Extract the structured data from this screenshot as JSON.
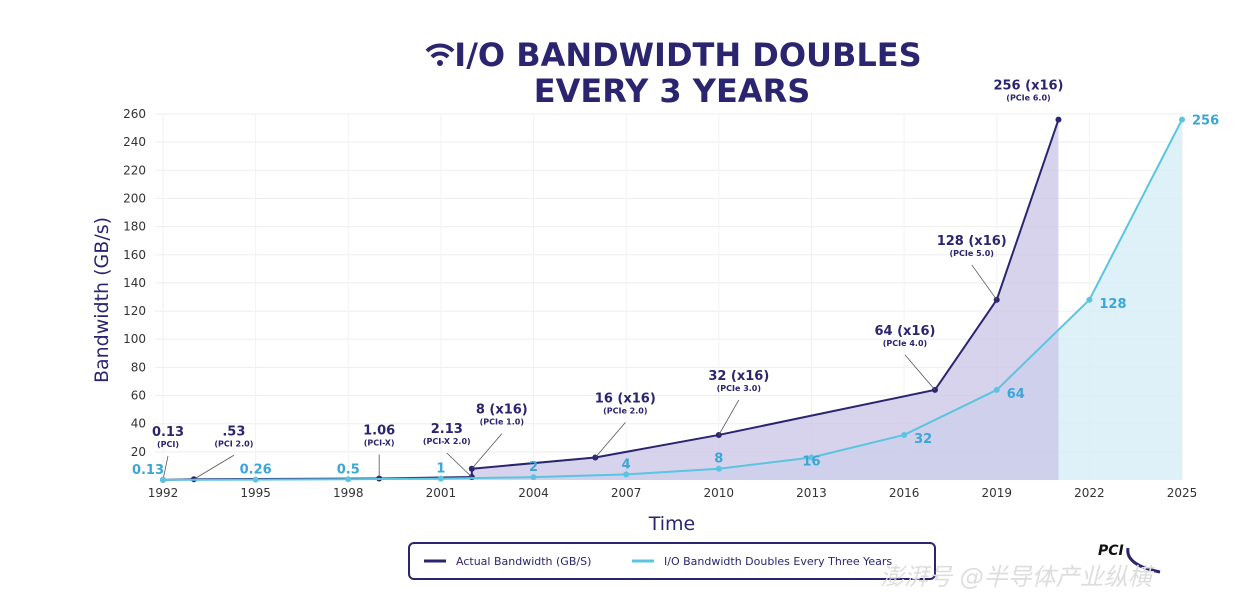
{
  "chart_data": {
    "type": "area",
    "title": [
      "I/O BANDWIDTH DOUBLES",
      "EVERY 3 YEARS"
    ],
    "title_icon": "wifi-icon",
    "xlabel": "Time",
    "ylabel": "Bandwidth (GB/s)",
    "xlim": [
      1992,
      2025
    ],
    "ylim": [
      0,
      260
    ],
    "xticks": [
      1992,
      1995,
      1998,
      2001,
      2004,
      2007,
      2010,
      2013,
      2016,
      2019,
      2022,
      2025
    ],
    "yticks": [
      20,
      40,
      60,
      80,
      100,
      120,
      140,
      160,
      180,
      200,
      220,
      240,
      260
    ],
    "grid": true,
    "legend_position": "bottom",
    "series": [
      {
        "name": "Actual Bandwidth (GB/S)",
        "color": "#2b2570",
        "fill": "#c9c4e6",
        "points": [
          {
            "x": 1992,
            "y": 0.13,
            "label": "0.13",
            "sub": "(PCI)"
          },
          {
            "x": 1993,
            "y": 0.53,
            "label": ".53",
            "sub": "(PCI 2.0)"
          },
          {
            "x": 1999,
            "y": 1.06,
            "label": "1.06",
            "sub": "(PCI-X)"
          },
          {
            "x": 2002,
            "y": 2.13,
            "label": "2.13",
            "sub": "(PCI-X 2.0)"
          },
          {
            "x": 2002,
            "y": 8,
            "label": "8 (x16)",
            "sub": "(PCIe 1.0)"
          },
          {
            "x": 2006,
            "y": 16,
            "label": "16 (x16)",
            "sub": "(PCIe 2.0)"
          },
          {
            "x": 2010,
            "y": 32,
            "label": "32 (x16)",
            "sub": "(PCIe 3.0)"
          },
          {
            "x": 2017,
            "y": 64,
            "label": "64 (x16)",
            "sub": "(PCIe 4.0)"
          },
          {
            "x": 2019,
            "y": 128,
            "label": "128 (x16)",
            "sub": "(PCIe 5.0)"
          },
          {
            "x": 2021,
            "y": 256,
            "label": "256 (x16)",
            "sub": "(PCIe 6.0)"
          }
        ]
      },
      {
        "name": "I/O Bandwidth Doubles Every Three Years",
        "color": "#5bc4e0",
        "fill": "#d6eef7",
        "points": [
          {
            "x": 1992,
            "y": 0.13,
            "label": "0.13"
          },
          {
            "x": 1995,
            "y": 0.26,
            "label": "0.26"
          },
          {
            "x": 1998,
            "y": 0.5,
            "label": "0.5"
          },
          {
            "x": 2001,
            "y": 1,
            "label": "1"
          },
          {
            "x": 2004,
            "y": 2,
            "label": "2"
          },
          {
            "x": 2007,
            "y": 4,
            "label": "4"
          },
          {
            "x": 2010,
            "y": 8,
            "label": "8"
          },
          {
            "x": 2013,
            "y": 16,
            "label": "16"
          },
          {
            "x": 2016,
            "y": 32,
            "label": "32"
          },
          {
            "x": 2019,
            "y": 64,
            "label": "64"
          },
          {
            "x": 2022,
            "y": 128,
            "label": "128"
          },
          {
            "x": 2025,
            "y": 256,
            "label": "256"
          }
        ]
      }
    ]
  },
  "logo": "PCI SIG",
  "watermark": "澎湃号 @半导体产业纵横"
}
